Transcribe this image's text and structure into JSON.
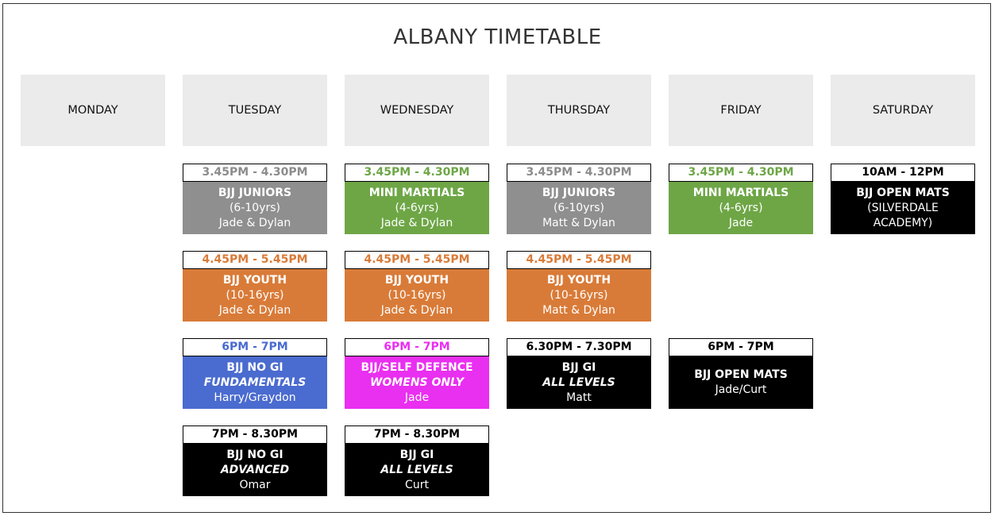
{
  "title": "ALBANY TIMETABLE",
  "days": [
    {
      "name": "MONDAY",
      "classes": []
    },
    {
      "name": "TUESDAY",
      "classes": [
        {
          "time": "3.45PM - 4.30PM",
          "time_color": "#8c8c8c",
          "bg": "#8f8f8f",
          "lines": [
            {
              "text": "BJJ JUNIORS",
              "style": "bold"
            },
            {
              "text": "(6-10yrs)",
              "style": "normal"
            },
            {
              "text": "Jade & Dylan",
              "style": "normal"
            }
          ]
        },
        {
          "time": "4.45PM - 5.45PM",
          "time_color": "#d97b38",
          "bg": "#d97b38",
          "lines": [
            {
              "text": "BJJ YOUTH",
              "style": "bold"
            },
            {
              "text": "(10-16yrs)",
              "style": "normal"
            },
            {
              "text": "Jade & Dylan",
              "style": "normal"
            }
          ]
        },
        {
          "time": "6PM - 7PM",
          "time_color": "#4a6bcf",
          "bg": "#4a6bcf",
          "lines": [
            {
              "text": "BJJ NO GI",
              "style": "bold"
            },
            {
              "text": "FUNDAMENTALS",
              "style": "italic"
            },
            {
              "text": "Harry/Graydon",
              "style": "normal"
            }
          ]
        },
        {
          "time": "7PM - 8.30PM",
          "time_color": "#000000",
          "bg": "#000000",
          "lines": [
            {
              "text": "BJJ NO GI",
              "style": "bold"
            },
            {
              "text": "ADVANCED",
              "style": "italic"
            },
            {
              "text": "Omar",
              "style": "normal"
            }
          ]
        }
      ]
    },
    {
      "name": "WEDNESDAY",
      "classes": [
        {
          "time": "3.45PM - 4.30PM",
          "time_color": "#6ea646",
          "bg": "#6ea646",
          "lines": [
            {
              "text": "MINI MARTIALS",
              "style": "bold"
            },
            {
              "text": "(4-6yrs)",
              "style": "normal"
            },
            {
              "text": "Jade & Dylan",
              "style": "normal"
            }
          ]
        },
        {
          "time": "4.45PM - 5.45PM",
          "time_color": "#d97b38",
          "bg": "#d97b38",
          "lines": [
            {
              "text": "BJJ YOUTH",
              "style": "bold"
            },
            {
              "text": "(10-16yrs)",
              "style": "normal"
            },
            {
              "text": "Jade & Dylan",
              "style": "normal"
            }
          ]
        },
        {
          "time": "6PM - 7PM",
          "time_color": "#e92ff0",
          "bg": "#e92ff0",
          "lines": [
            {
              "text": "BJJ/SELF DEFENCE",
              "style": "bold"
            },
            {
              "text": "WOMENS ONLY",
              "style": "italic"
            },
            {
              "text": "Jade",
              "style": "normal"
            }
          ]
        },
        {
          "time": "7PM - 8.30PM",
          "time_color": "#000000",
          "bg": "#000000",
          "lines": [
            {
              "text": "BJJ GI",
              "style": "bold"
            },
            {
              "text": "ALL LEVELS",
              "style": "italic"
            },
            {
              "text": "Curt",
              "style": "normal"
            }
          ]
        }
      ]
    },
    {
      "name": "THURSDAY",
      "classes": [
        {
          "time": "3.45PM - 4.30PM",
          "time_color": "#8c8c8c",
          "bg": "#8f8f8f",
          "lines": [
            {
              "text": "BJJ JUNIORS",
              "style": "bold"
            },
            {
              "text": "(6-10yrs)",
              "style": "normal"
            },
            {
              "text": "Matt & Dylan",
              "style": "normal"
            }
          ]
        },
        {
          "time": "4.45PM - 5.45PM",
          "time_color": "#d97b38",
          "bg": "#d97b38",
          "lines": [
            {
              "text": "BJJ YOUTH",
              "style": "bold"
            },
            {
              "text": "(10-16yrs)",
              "style": "normal"
            },
            {
              "text": "Matt & Dylan",
              "style": "normal"
            }
          ]
        },
        {
          "time": "6.30PM - 7.30PM",
          "time_color": "#000000",
          "bg": "#000000",
          "lines": [
            {
              "text": "BJJ GI",
              "style": "bold"
            },
            {
              "text": "ALL LEVELS",
              "style": "italic"
            },
            {
              "text": "Matt",
              "style": "normal"
            }
          ]
        }
      ]
    },
    {
      "name": "FRIDAY",
      "classes": [
        {
          "time": "3.45PM - 4.30PM",
          "time_color": "#6ea646",
          "bg": "#6ea646",
          "lines": [
            {
              "text": "MINI MARTIALS",
              "style": "bold"
            },
            {
              "text": "(4-6yrs)",
              "style": "normal"
            },
            {
              "text": "Jade",
              "style": "normal"
            }
          ]
        },
        null,
        {
          "time": "6PM - 7PM",
          "time_color": "#000000",
          "bg": "#000000",
          "lines": [
            {
              "text": "BJJ OPEN MATS",
              "style": "bold"
            },
            {
              "text": "Jade/Curt",
              "style": "normal"
            }
          ]
        }
      ]
    },
    {
      "name": "SATURDAY",
      "classes": [
        {
          "time": "10AM - 12PM",
          "time_color": "#000000",
          "bg": "#000000",
          "lines": [
            {
              "text": "BJJ OPEN MATS",
              "style": "bold"
            },
            {
              "text": "(SILVERDALE",
              "style": "normal"
            },
            {
              "text": "ACADEMY)",
              "style": "normal"
            }
          ]
        }
      ]
    }
  ]
}
